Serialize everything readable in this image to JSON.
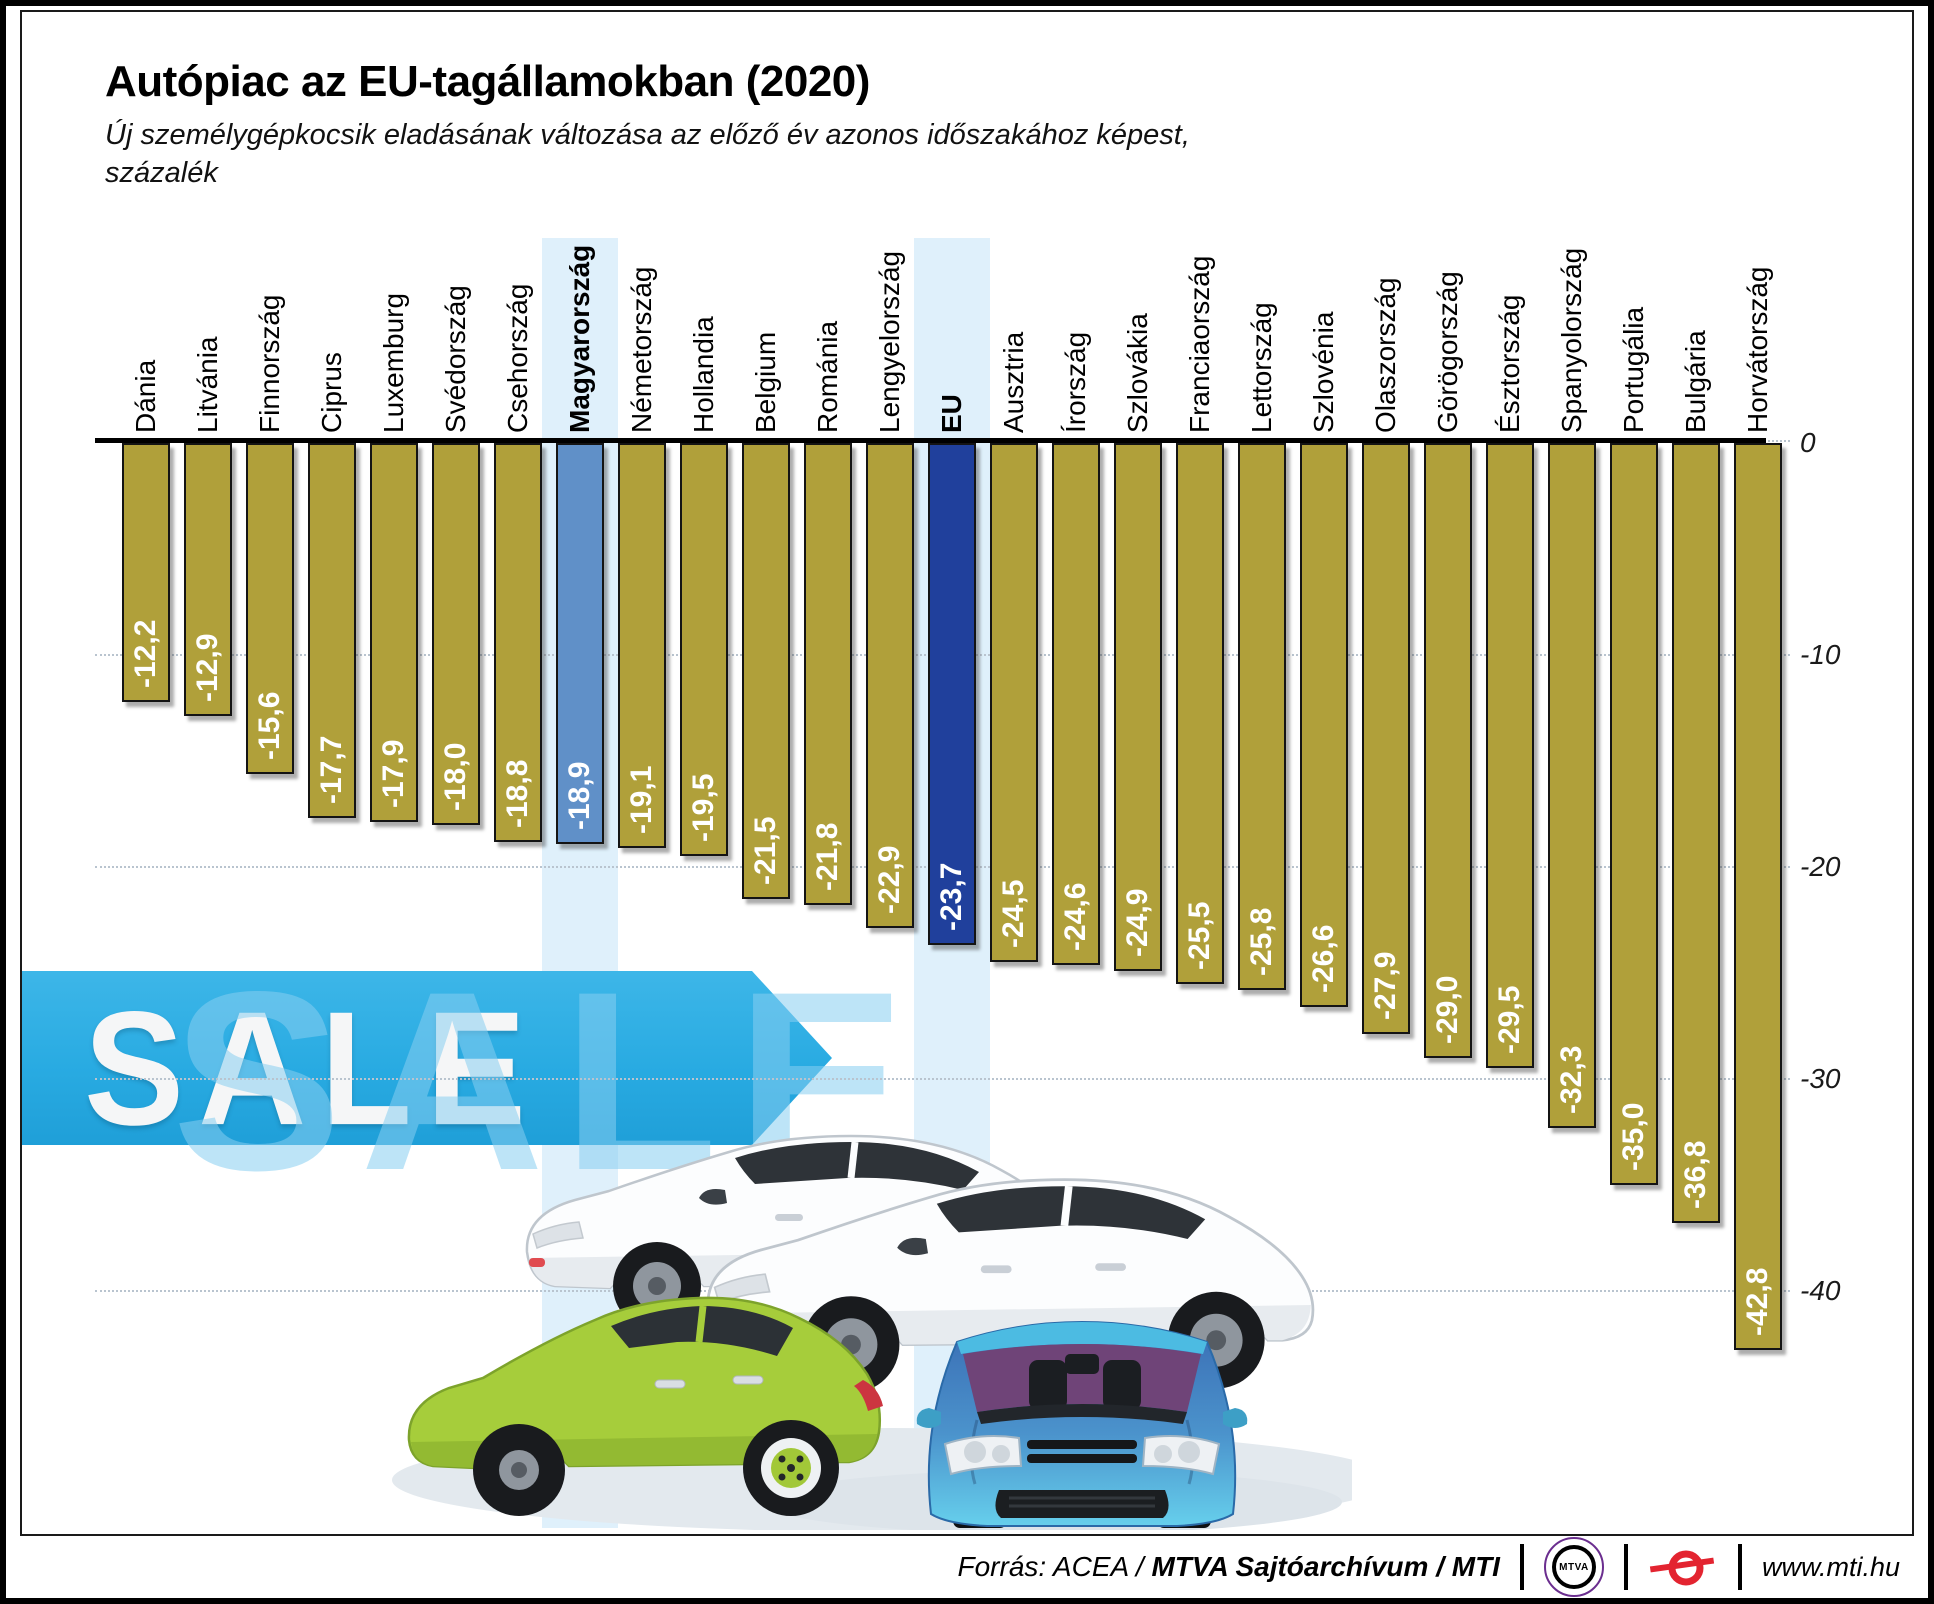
{
  "header": {
    "title": "Autópiac az EU-tagállamokban (2020)",
    "subtitle_line1": "Új személygépkocsik eladásának változása az előző év azonos időszakához képest,",
    "subtitle_line2": "százalék"
  },
  "chart_data": {
    "type": "bar",
    "title": "Autópiac az EU-tagállamokban (2020)",
    "ylabel": "százalék (%)",
    "ylim": [
      -45,
      0
    ],
    "yticks": [
      0,
      -10,
      -20,
      -30,
      -40
    ],
    "grid": "dotted-horizontal",
    "bars": [
      {
        "label": "Dánia",
        "value": -12.2,
        "display": "-12,2",
        "kind": "member"
      },
      {
        "label": "Litvánia",
        "value": -12.9,
        "display": "-12,9",
        "kind": "member"
      },
      {
        "label": "Finnország",
        "value": -15.6,
        "display": "-15,6",
        "kind": "member"
      },
      {
        "label": "Ciprus",
        "value": -17.7,
        "display": "-17,7",
        "kind": "member"
      },
      {
        "label": "Luxemburg",
        "value": -17.9,
        "display": "-17,9",
        "kind": "member"
      },
      {
        "label": "Svédország",
        "value": -18.0,
        "display": "-18,0",
        "kind": "member"
      },
      {
        "label": "Csehország",
        "value": -18.8,
        "display": "-18,8",
        "kind": "member"
      },
      {
        "label": "Magyarország",
        "value": -18.9,
        "display": "-18,9",
        "kind": "hungary"
      },
      {
        "label": "Németország",
        "value": -19.1,
        "display": "-19,1",
        "kind": "member"
      },
      {
        "label": "Hollandia",
        "value": -19.5,
        "display": "-19,5",
        "kind": "member"
      },
      {
        "label": "Belgium",
        "value": -21.5,
        "display": "-21,5",
        "kind": "member"
      },
      {
        "label": "Románia",
        "value": -21.8,
        "display": "-21,8",
        "kind": "member"
      },
      {
        "label": "Lengyelország",
        "value": -22.9,
        "display": "-22,9",
        "kind": "member"
      },
      {
        "label": "EU",
        "value": -23.7,
        "display": "-23,7",
        "kind": "eu"
      },
      {
        "label": "Ausztria",
        "value": -24.5,
        "display": "-24,5",
        "kind": "member"
      },
      {
        "label": "Írország",
        "value": -24.6,
        "display": "-24,6",
        "kind": "member"
      },
      {
        "label": "Szlovákia",
        "value": -24.9,
        "display": "-24,9",
        "kind": "member"
      },
      {
        "label": "Franciaország",
        "value": -25.5,
        "display": "-25,5",
        "kind": "member"
      },
      {
        "label": "Lettország",
        "value": -25.8,
        "display": "-25,8",
        "kind": "member"
      },
      {
        "label": "Szlovénia",
        "value": -26.6,
        "display": "-26,6",
        "kind": "member"
      },
      {
        "label": "Olaszország",
        "value": -27.9,
        "display": "-27,9",
        "kind": "member"
      },
      {
        "label": "Görögország",
        "value": -29.0,
        "display": "-29,0",
        "kind": "member"
      },
      {
        "label": "Észtország",
        "value": -29.5,
        "display": "-29,5",
        "kind": "member"
      },
      {
        "label": "Spanyolország",
        "value": -32.3,
        "display": "-32,3",
        "kind": "member"
      },
      {
        "label": "Portugália",
        "value": -35.0,
        "display": "-35,0",
        "kind": "member"
      },
      {
        "label": "Bulgária",
        "value": -36.8,
        "display": "-36,8",
        "kind": "member"
      },
      {
        "label": "Horvátország",
        "value": -42.8,
        "display": "-42,8",
        "kind": "member"
      }
    ],
    "colors": {
      "member_bar": "#b0a03a",
      "hungary_bar": "#6090c8",
      "eu_bar": "#20409c",
      "highlight_band": "#dff0fb",
      "banner_blue": "#29abe2"
    },
    "legend": "none"
  },
  "banner": {
    "text": "SALE",
    "ghost_text": "SALE"
  },
  "footer": {
    "source_prefix": "Forrás: ACEA /",
    "source_bold": "MTVA Sajtóarchívum",
    "source_tail": "/ MTI",
    "mtva_logo": "MTVA",
    "url": "www.mti.hu"
  }
}
